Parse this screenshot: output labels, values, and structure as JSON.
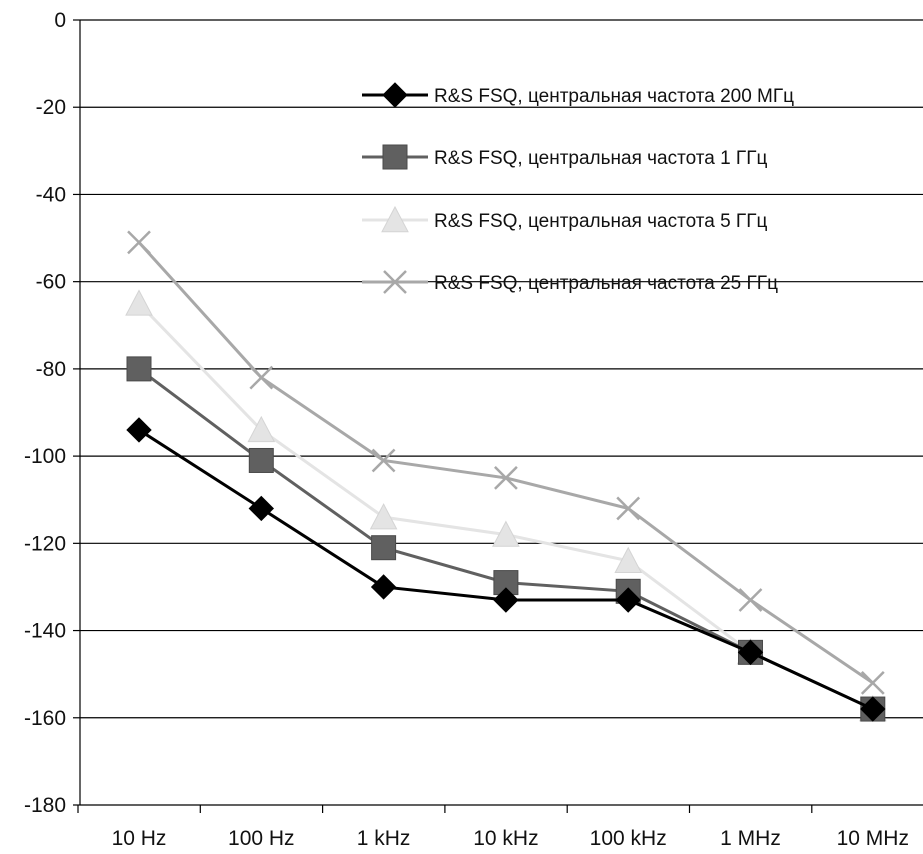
{
  "chart_data": {
    "type": "line",
    "title": "",
    "xlabel": "",
    "ylabel": "",
    "categories": [
      "10 Hz",
      "100 Hz",
      "1 kHz",
      "10 kHz",
      "100 kHz",
      "1 MHz",
      "10 MHz"
    ],
    "ylim": [
      -180,
      0
    ],
    "yticks": [
      0,
      -20,
      -40,
      -60,
      -80,
      -100,
      -120,
      -140,
      -160,
      -180
    ],
    "ytick_labels": [
      "0",
      "-20",
      "-40",
      "-60",
      "-80",
      "-100",
      "-120",
      "-140",
      "-160",
      "-180"
    ],
    "grid": "horizontal",
    "legend_position": "top-right",
    "series": [
      {
        "name": "R&S FSQ, центральная частота 200 МГц",
        "marker": "diamond",
        "color": "#000000",
        "values": [
          -94,
          -112,
          -130,
          -133,
          -133,
          -145,
          -158
        ]
      },
      {
        "name": "R&S FSQ, центральная частота 1 ГГц",
        "marker": "square",
        "color": "#606060",
        "values": [
          -80,
          -101,
          -121,
          -129,
          -131,
          -145,
          -158
        ]
      },
      {
        "name": "R&S FSQ, центральная частота 5 ГГц",
        "marker": "triangle",
        "color": "#e4e4e4",
        "values": [
          -65,
          -94,
          -114,
          -118,
          -124,
          -145,
          -158
        ]
      },
      {
        "name": "R&S FSQ, центральная частота 25 ГГц",
        "marker": "x",
        "color": "#a8a8a8",
        "values": [
          -51,
          -82,
          -101,
          -105,
          -112,
          -133,
          -152
        ]
      }
    ]
  }
}
